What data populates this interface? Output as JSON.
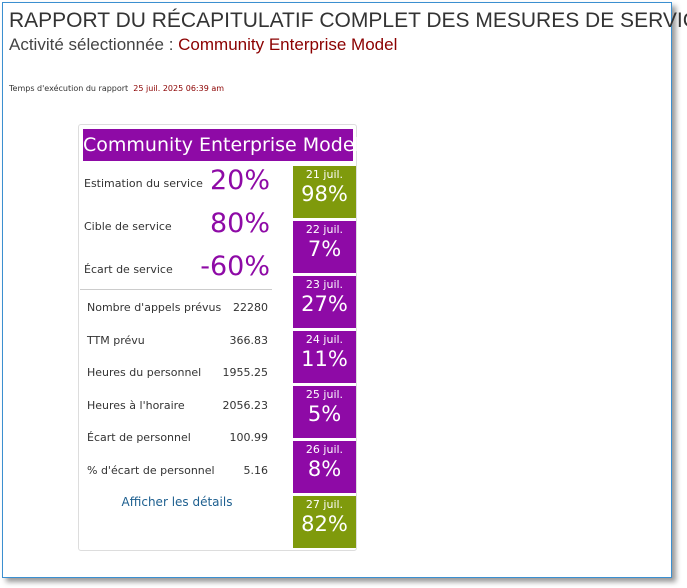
{
  "header": {
    "title": "RAPPORT DU RÉCAPITULATIF COMPLET DES MESURES DE SERVICE",
    "activity_label": "Activité sélectionnée :",
    "activity": "Community Enterprise Model",
    "run_time_label": "Temps d'exécution du rapport",
    "run_time": "25 juil. 2025 06:39 am"
  },
  "card": {
    "title": "Community Enterprise Model",
    "metrics": [
      {
        "label": "Estimation du service",
        "value": "20%"
      },
      {
        "label": "Cible de service",
        "value": "80%"
      },
      {
        "label": "Écart de service",
        "value": "-60%"
      }
    ],
    "stats": [
      {
        "label": "Nombre d'appels prévus",
        "value": "22280"
      },
      {
        "label": "TTM prévu",
        "value": "366.83"
      },
      {
        "label": "Heures du personnel",
        "value": "1955.25"
      },
      {
        "label": "Heures à l'horaire",
        "value": "2056.23"
      },
      {
        "label": "Écart de personnel",
        "value": "100.99"
      },
      {
        "label": "% d'écart de personnel",
        "value": "5.16"
      }
    ],
    "link": "Afficher les détails",
    "days": [
      {
        "date": "21 juil.",
        "value": "98%",
        "color": "#7f9a0c"
      },
      {
        "date": "22 juil.",
        "value": "7%",
        "color": "#8e0aa6"
      },
      {
        "date": "23 juil.",
        "value": "27%",
        "color": "#8e0aa6"
      },
      {
        "date": "24 juil.",
        "value": "11%",
        "color": "#8e0aa6"
      },
      {
        "date": "25 juil.",
        "value": "5%",
        "color": "#8e0aa6"
      },
      {
        "date": "26 juil.",
        "value": "8%",
        "color": "#8e0aa6"
      },
      {
        "date": "27 juil.",
        "value": "82%",
        "color": "#7f9a0c"
      }
    ]
  }
}
